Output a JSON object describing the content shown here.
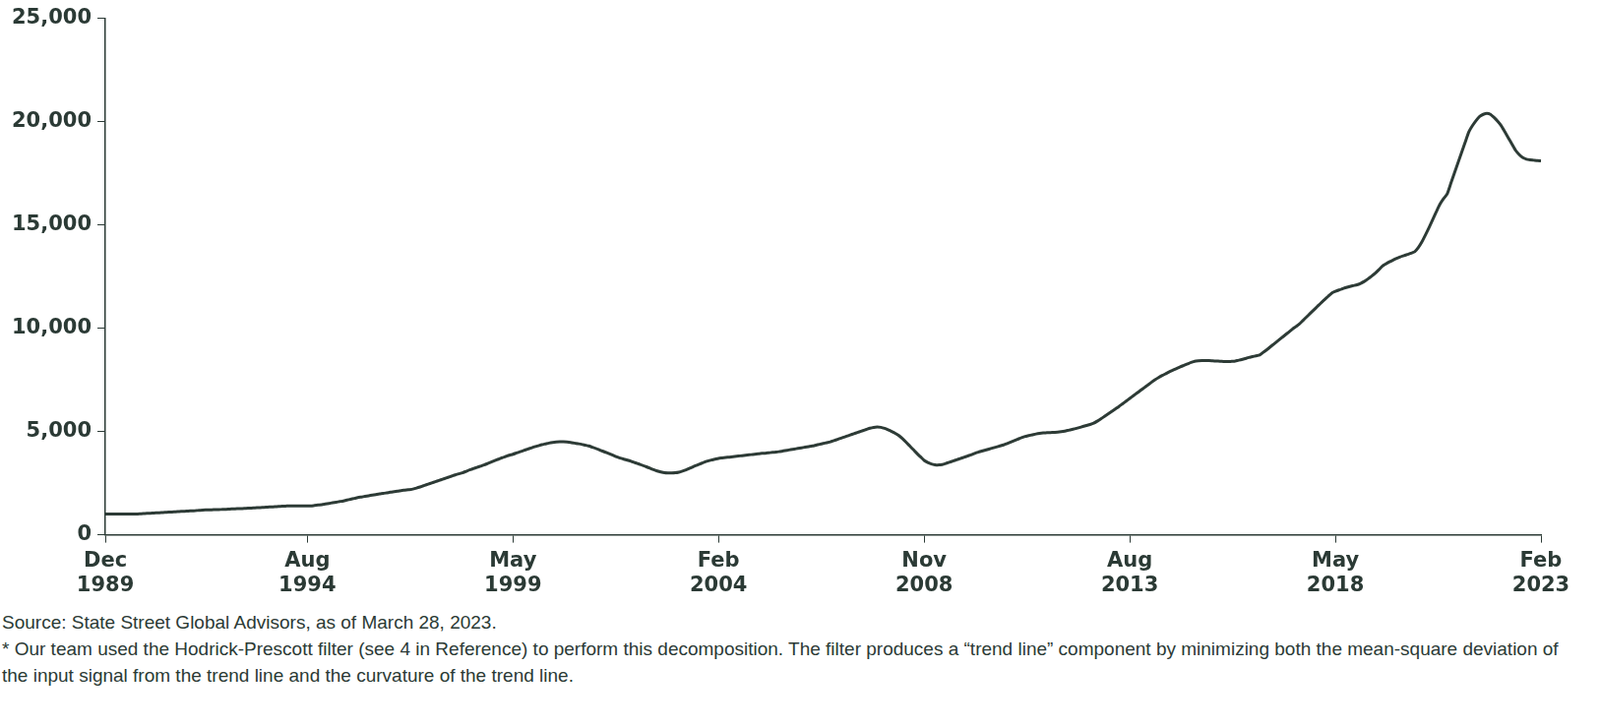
{
  "chart_data": {
    "type": "line",
    "color": "#2d3b36",
    "grid": false,
    "source": "Source: State Street Global Advisors, as of March 28, 2023.",
    "footnote": "* Our team used the Hodrick-Prescott filter (see 4 in Reference) to perform this decomposition. The filter produces a “trend line” component by minimizing both the mean-square deviation of the input signal from the trend line and the curvature of the trend line.",
    "ylim": [
      0,
      25000
    ],
    "yticks": [
      0,
      {
        "value": 5000,
        "label": "5,000"
      },
      {
        "value": 10000,
        "label": "10,000"
      },
      {
        "value": 15000,
        "label": "15,000"
      },
      {
        "value": 20000,
        "label": "20,000"
      },
      {
        "value": 25000,
        "label": "25,000"
      }
    ],
    "categories": [
      "Dec 1989",
      null,
      null,
      null,
      null,
      null,
      null,
      null,
      null,
      null,
      null,
      null,
      null,
      null,
      null,
      null,
      null,
      null,
      null,
      null,
      null,
      null,
      null,
      null,
      null,
      null,
      null,
      null,
      null,
      null,
      null,
      null,
      null,
      null,
      null,
      null,
      null,
      null,
      null,
      null,
      null,
      null,
      null,
      null,
      null,
      null,
      null,
      null,
      null,
      null,
      null,
      null,
      null,
      null,
      null,
      null,
      "Aug 1994",
      null,
      null,
      null,
      null,
      null,
      null,
      null,
      null,
      null,
      null,
      null,
      null,
      null,
      null,
      null,
      null,
      null,
      null,
      null,
      null,
      null,
      null,
      null,
      null,
      null,
      null,
      null,
      null,
      null,
      null,
      null,
      null,
      null,
      null,
      null,
      null,
      null,
      null,
      null,
      null,
      null,
      null,
      null,
      null,
      null,
      null,
      null,
      null,
      null,
      null,
      null,
      null,
      null,
      null,
      null,
      null,
      "May 1999",
      null,
      null,
      null,
      null,
      null,
      null,
      null,
      null,
      null,
      null,
      null,
      null,
      null,
      null,
      null,
      null,
      null,
      null,
      null,
      null,
      null,
      null,
      null,
      null,
      null,
      null,
      null,
      null,
      null,
      null,
      null,
      null,
      null,
      null,
      null,
      null,
      null,
      null,
      null,
      null,
      null,
      null,
      null,
      null,
      null,
      null,
      null,
      null,
      null,
      null,
      null,
      null,
      null,
      null,
      null,
      null,
      "Feb 2004",
      null,
      null,
      null,
      null,
      null,
      null,
      null,
      null,
      null,
      null,
      null,
      null,
      null,
      null,
      null,
      null,
      null,
      null,
      null,
      null,
      null,
      null,
      null,
      null,
      null,
      null,
      null,
      null,
      null,
      null,
      null,
      null,
      null,
      null,
      null,
      null,
      null,
      null,
      null,
      null,
      null,
      null,
      null,
      null,
      null,
      null,
      null,
      null,
      null,
      null,
      null,
      null,
      null,
      null,
      null,
      null,
      "Nov 2008",
      null,
      null,
      null,
      null,
      null,
      null,
      null,
      null,
      null,
      null,
      null,
      null,
      null,
      null,
      null,
      null,
      null,
      null,
      null,
      null,
      null,
      null,
      null,
      null,
      null,
      null,
      null,
      null,
      null,
      null,
      null,
      null,
      null,
      null,
      null,
      null,
      null,
      null,
      null,
      null,
      null,
      null,
      null,
      null,
      null,
      null,
      null,
      null,
      null,
      null,
      null,
      null,
      null,
      null,
      null,
      null,
      "Aug 2013",
      null,
      null,
      null,
      null,
      null,
      null,
      null,
      null,
      null,
      null,
      null,
      null,
      null,
      null,
      null,
      null,
      null,
      null,
      null,
      null,
      null,
      null,
      null,
      null,
      null,
      null,
      null,
      null,
      null,
      null,
      null,
      null,
      null,
      null,
      null,
      null,
      null,
      null,
      null,
      null,
      null,
      null,
      null,
      null,
      null,
      null,
      null,
      null,
      null,
      null,
      null,
      null,
      null,
      null,
      null,
      null,
      "May 2018",
      null,
      null,
      null,
      null,
      null,
      null,
      null,
      null,
      null,
      null,
      null,
      null,
      null,
      null,
      null,
      null,
      null,
      null,
      null,
      null,
      null,
      null,
      null,
      null,
      null,
      null,
      null,
      null,
      null,
      null,
      null,
      null,
      null,
      null,
      null,
      null,
      null,
      null,
      null,
      null,
      null,
      null,
      null,
      null,
      null,
      null,
      null,
      null,
      null,
      null,
      null,
      null,
      null,
      null,
      null,
      null,
      "Feb 2023"
    ],
    "values": [
      1000,
      1000,
      1000,
      1000,
      1000,
      1000,
      1000,
      1000,
      1000,
      1010,
      1020,
      1030,
      1040,
      1050,
      1060,
      1070,
      1080,
      1090,
      1100,
      1110,
      1120,
      1130,
      1140,
      1150,
      1160,
      1170,
      1185,
      1200,
      1205,
      1210,
      1215,
      1220,
      1225,
      1230,
      1240,
      1250,
      1260,
      1265,
      1270,
      1280,
      1290,
      1300,
      1310,
      1320,
      1330,
      1340,
      1350,
      1360,
      1370,
      1380,
      1390,
      1400,
      1400,
      1400,
      1400,
      1400,
      1400,
      1400,
      1420,
      1440,
      1460,
      1490,
      1520,
      1550,
      1580,
      1610,
      1640,
      1680,
      1720,
      1760,
      1800,
      1830,
      1860,
      1890,
      1920,
      1950,
      1980,
      2000,
      2030,
      2060,
      2090,
      2110,
      2140,
      2160,
      2180,
      2200,
      2250,
      2300,
      2360,
      2420,
      2480,
      2540,
      2600,
      2660,
      2720,
      2780,
      2840,
      2900,
      2950,
      3000,
      3070,
      3140,
      3200,
      3260,
      3320,
      3380,
      3450,
      3520,
      3590,
      3660,
      3730,
      3790,
      3850,
      3900,
      3960,
      4020,
      4080,
      4140,
      4200,
      4260,
      4310,
      4360,
      4400,
      4440,
      4470,
      4490,
      4500,
      4500,
      4490,
      4470,
      4440,
      4410,
      4380,
      4340,
      4300,
      4240,
      4180,
      4110,
      4040,
      3970,
      3900,
      3830,
      3760,
      3700,
      3650,
      3600,
      3540,
      3480,
      3420,
      3360,
      3290,
      3220,
      3150,
      3090,
      3040,
      3000,
      2990,
      2990,
      3000,
      3030,
      3080,
      3140,
      3220,
      3300,
      3370,
      3440,
      3510,
      3570,
      3620,
      3660,
      3700,
      3720,
      3740,
      3760,
      3780,
      3800,
      3820,
      3840,
      3860,
      3880,
      3900,
      3920,
      3940,
      3950,
      3970,
      3990,
      4000,
      4030,
      4060,
      4090,
      4120,
      4150,
      4180,
      4210,
      4240,
      4270,
      4300,
      4340,
      4380,
      4420,
      4460,
      4500,
      4560,
      4620,
      4680,
      4740,
      4800,
      4860,
      4920,
      4980,
      5040,
      5100,
      5160,
      5200,
      5220,
      5200,
      5150,
      5080,
      5000,
      4910,
      4800,
      4650,
      4480,
      4300,
      4120,
      3940,
      3770,
      3600,
      3500,
      3430,
      3390,
      3380,
      3400,
      3450,
      3510,
      3570,
      3630,
      3690,
      3750,
      3810,
      3870,
      3940,
      4000,
      4050,
      4100,
      4150,
      4200,
      4250,
      4300,
      4350,
      4420,
      4490,
      4560,
      4630,
      4700,
      4760,
      4800,
      4840,
      4880,
      4910,
      4930,
      4940,
      4950,
      4960,
      4970,
      4990,
      5020,
      5060,
      5100,
      5140,
      5190,
      5240,
      5290,
      5340,
      5400,
      5500,
      5610,
      5730,
      5850,
      5970,
      6090,
      6210,
      6340,
      6470,
      6600,
      6730,
      6860,
      6990,
      7120,
      7250,
      7380,
      7500,
      7610,
      7710,
      7800,
      7890,
      7970,
      8050,
      8130,
      8200,
      8270,
      8340,
      8400,
      8420,
      8430,
      8430,
      8430,
      8420,
      8410,
      8400,
      8390,
      8380,
      8390,
      8400,
      8440,
      8480,
      8530,
      8580,
      8620,
      8660,
      8700,
      8830,
      8960,
      9100,
      9240,
      9380,
      9520,
      9660,
      9800,
      9940,
      10070,
      10200,
      10370,
      10540,
      10710,
      10880,
      11050,
      11220,
      11380,
      11540,
      11700,
      11780,
      11850,
      11910,
      11970,
      12020,
      12060,
      12100,
      12170,
      12260,
      12380,
      12510,
      12650,
      12820,
      13000,
      13110,
      13210,
      13300,
      13380,
      13450,
      13510,
      13570,
      13630,
      13700,
      13900,
      14180,
      14520,
      14880,
      15260,
      15640,
      16000,
      16270,
      16500,
      17000,
      17500,
      18000,
      18500,
      19000,
      19500,
      19800,
      20050,
      20250,
      20350,
      20400,
      20350,
      20200,
      20020,
      19800,
      19500,
      19200,
      18900,
      18600,
      18400,
      18250,
      18180,
      18150,
      18130,
      18110,
      18100
    ]
  }
}
